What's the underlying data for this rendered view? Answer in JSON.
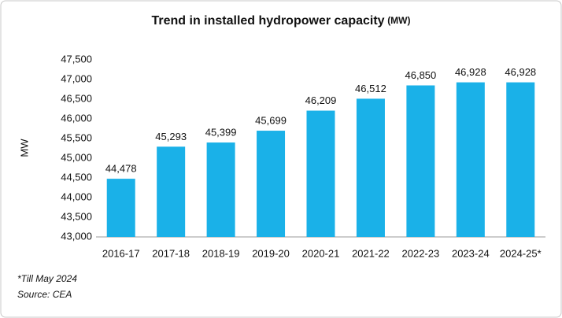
{
  "chart_data": {
    "type": "bar",
    "title": "Trend in installed hydropower capacity",
    "title_unit": "(MW)",
    "y_label": "MW",
    "categories": [
      "2016-17",
      "2017-18",
      "2018-19",
      "2019-20",
      "2020-21",
      "2021-22",
      "2022-23",
      "2023-24",
      "2024-25*"
    ],
    "values": [
      44478,
      45293,
      45399,
      45699,
      46209,
      46512,
      46850,
      46928,
      46928
    ],
    "value_labels": [
      "44,478",
      "45,293",
      "45,399",
      "45,699",
      "46,209",
      "46,512",
      "46,850",
      "46,928",
      "46,928"
    ],
    "color": "#1ab1e8",
    "ylim": [
      43000,
      47500
    ],
    "yticks": [
      {
        "value": 43000,
        "label": "43,000"
      },
      {
        "value": 43500,
        "label": "43,500"
      },
      {
        "value": 44000,
        "label": "44,000"
      },
      {
        "value": 44500,
        "label": "44,500"
      },
      {
        "value": 45000,
        "label": "45,000"
      },
      {
        "value": 45500,
        "label": "45,500"
      },
      {
        "value": 46000,
        "label": "46,000"
      },
      {
        "value": 46500,
        "label": "46,500"
      },
      {
        "value": 47000,
        "label": "47,000"
      },
      {
        "value": 47500,
        "label": "47,500"
      }
    ],
    "grid": false,
    "notes": [
      "*Till May 2024",
      "Source: CEA"
    ]
  }
}
